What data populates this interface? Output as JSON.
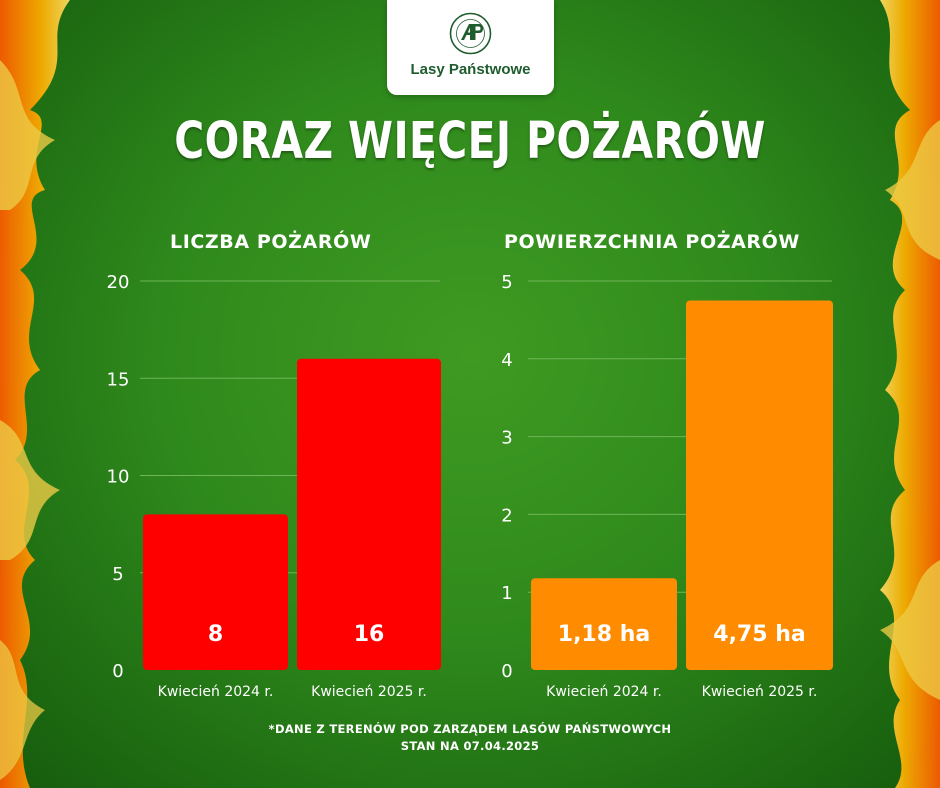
{
  "brand": {
    "name": "Lasy Państwowe"
  },
  "headline": "CORAZ WIĘCEJ POŻARÓW",
  "chart_data": [
    {
      "type": "bar",
      "title": "LICZBA POŻARÓW",
      "categories": [
        "Kwiecień 2024 r.",
        "Kwiecień 2025 r."
      ],
      "values": [
        8,
        16
      ],
      "value_labels": [
        "8",
        "16"
      ],
      "ylim": [
        0,
        20
      ],
      "yticks": [
        0,
        5,
        10,
        15,
        20
      ],
      "ytick_labels": [
        "0",
        "5",
        "10",
        "15",
        "20"
      ],
      "grid": true,
      "bar_color": "#ff0000"
    },
    {
      "type": "bar",
      "title": "POWIERZCHNIA POŻARÓW",
      "categories": [
        "Kwiecień 2024 r.",
        "Kwiecień 2025 r."
      ],
      "values": [
        1.18,
        4.75
      ],
      "value_labels": [
        "1,18 ha",
        "4,75 ha"
      ],
      "ylim": [
        0,
        5
      ],
      "yticks": [
        0,
        1,
        2,
        3,
        4,
        5
      ],
      "ytick_labels": [
        "0",
        "1",
        "2",
        "3",
        "4",
        "5"
      ],
      "grid": true,
      "bar_color": "#ff8c00"
    }
  ],
  "footnote": {
    "line1": "*DANE Z TERENÓW POD ZARZĄDEM  LASÓW PAŃSTWOWYCH",
    "line2": "STAN NA 07.04.2025"
  },
  "colors": {
    "background": "#2f8a1c",
    "logo_green": "#1f5c2e",
    "grid": "#6fb556"
  }
}
